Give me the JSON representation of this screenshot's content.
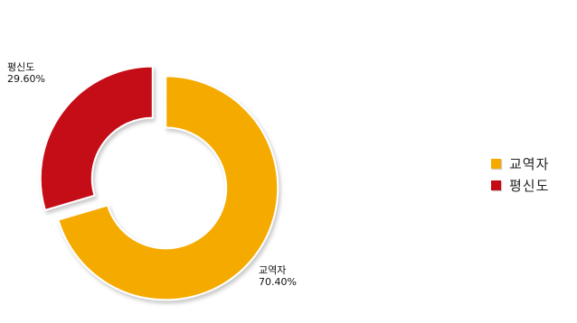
{
  "chart_data": {
    "type": "pie",
    "title": "",
    "categories": [
      "교역자",
      "평신도"
    ],
    "values": [
      70.4,
      29.6
    ],
    "value_labels": [
      "70.40%",
      "29.60%"
    ],
    "colors": [
      "#f5aa00",
      "#c40a12"
    ],
    "legend": "right",
    "style": "doughnut, exploded"
  }
}
